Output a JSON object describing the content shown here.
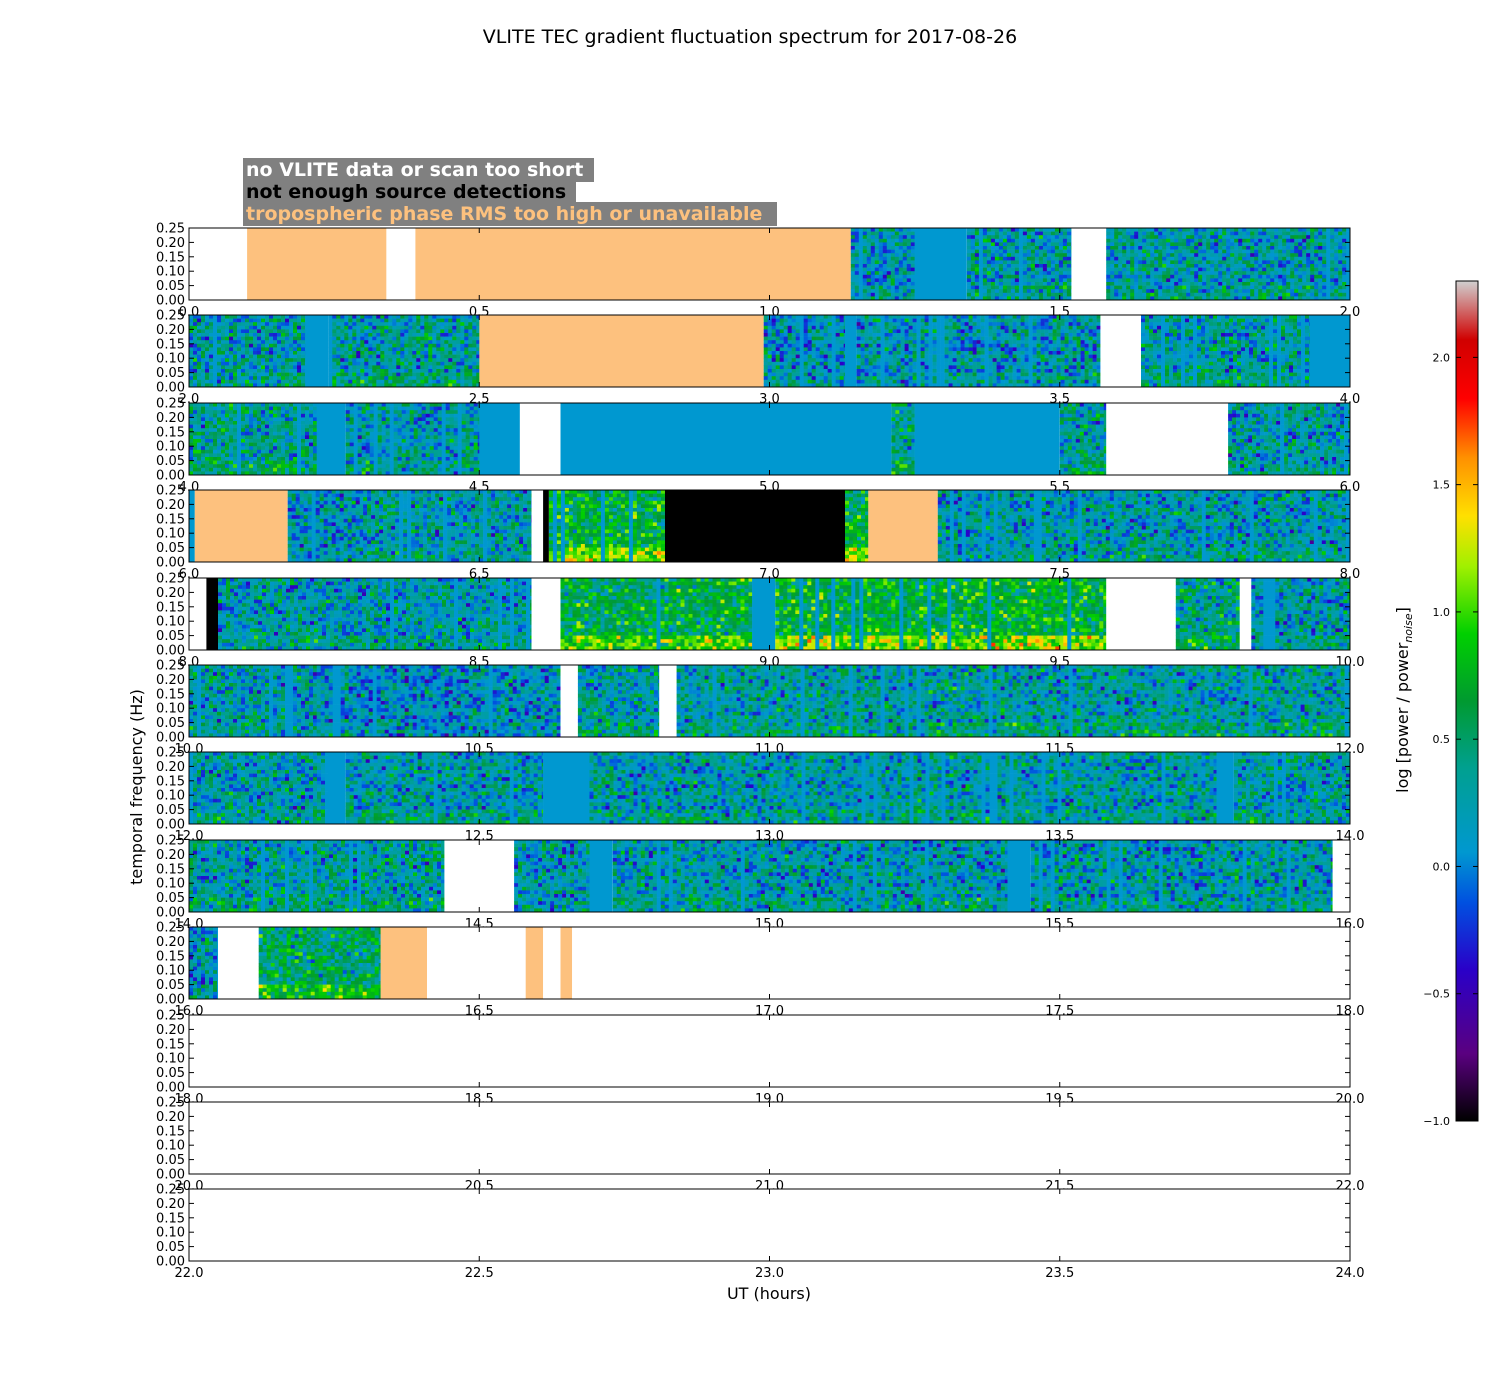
{
  "chart_data": {
    "type": "heatmap",
    "title": "VLITE TEC gradient fluctuation spectrum for 2017-08-26",
    "xlabel": "UT (hours)",
    "ylabel": "temporal frequency (Hz)",
    "ylim": [
      0,
      0.25
    ],
    "yticks": [
      "0.00",
      "0.05",
      "0.10",
      "0.15",
      "0.20",
      "0.25"
    ],
    "colorbar": {
      "label": "log [power / power",
      "label_sub": "noise",
      "label_end": "]",
      "range": [
        -1.0,
        2.3
      ],
      "ticks": [
        "−1.0",
        "−0.5",
        "0.0",
        "0.5",
        "1.0",
        "1.5",
        "2.0"
      ],
      "tick_values": [
        -1.0,
        -0.5,
        0.0,
        0.5,
        1.0,
        1.5,
        2.0
      ]
    },
    "legend": [
      {
        "text": "no VLITE data or scan too short",
        "status": "no_data",
        "color": "#ffffff"
      },
      {
        "text": "not enough source detections",
        "status": "few_detections",
        "color": "#000000"
      },
      {
        "text": "tropospheric phase RMS too high or unavailable",
        "status": "tropo",
        "color": "#fdc17e"
      }
    ],
    "panels": [
      {
        "xlim": [
          0,
          2
        ],
        "xticks": [
          "0.0",
          "0.5",
          "1.0",
          "1.5",
          "2.0"
        ],
        "segments": [
          {
            "start": 0.0,
            "end": 0.1,
            "status": "no_data"
          },
          {
            "start": 0.1,
            "end": 0.34,
            "status": "tropo"
          },
          {
            "start": 0.34,
            "end": 0.39,
            "status": "no_data"
          },
          {
            "start": 0.39,
            "end": 1.14,
            "status": "tropo"
          },
          {
            "start": 1.14,
            "end": 1.25,
            "status": "data",
            "level": 0.1
          },
          {
            "start": 1.25,
            "end": 1.34,
            "status": "quiet"
          },
          {
            "start": 1.34,
            "end": 1.52,
            "status": "data",
            "level": 0.15
          },
          {
            "start": 1.52,
            "end": 1.58,
            "status": "no_data"
          },
          {
            "start": 1.58,
            "end": 2.0,
            "status": "data",
            "level": 0.15
          }
        ]
      },
      {
        "xlim": [
          2,
          4
        ],
        "xticks": [
          "2.0",
          "2.5",
          "3.0",
          "3.5",
          "4.0"
        ],
        "segments": [
          {
            "start": 2.0,
            "end": 2.2,
            "status": "data",
            "level": 0.15
          },
          {
            "start": 2.2,
            "end": 2.24,
            "status": "quiet"
          },
          {
            "start": 2.24,
            "end": 2.5,
            "status": "data",
            "level": 0.2
          },
          {
            "start": 2.5,
            "end": 2.99,
            "status": "tropo"
          },
          {
            "start": 2.99,
            "end": 3.13,
            "status": "data",
            "level": 0.1
          },
          {
            "start": 3.13,
            "end": 3.15,
            "status": "quiet"
          },
          {
            "start": 3.15,
            "end": 3.57,
            "status": "data",
            "level": 0.1
          },
          {
            "start": 3.57,
            "end": 3.64,
            "status": "no_data"
          },
          {
            "start": 3.64,
            "end": 3.93,
            "status": "data",
            "level": 0.2
          },
          {
            "start": 3.93,
            "end": 4.0,
            "status": "quiet"
          }
        ]
      },
      {
        "xlim": [
          4,
          6
        ],
        "xticks": [
          "4.0",
          "4.5",
          "5.0",
          "5.5",
          "6.0"
        ],
        "segments": [
          {
            "start": 4.0,
            "end": 4.22,
            "status": "data",
            "level": 0.25
          },
          {
            "start": 4.22,
            "end": 4.27,
            "status": "quiet"
          },
          {
            "start": 4.27,
            "end": 4.5,
            "status": "data",
            "level": 0.15
          },
          {
            "start": 4.5,
            "end": 4.57,
            "status": "quiet"
          },
          {
            "start": 4.57,
            "end": 4.64,
            "status": "no_data"
          },
          {
            "start": 4.64,
            "end": 5.0,
            "status": "quiet"
          },
          {
            "start": 5.0,
            "end": 5.21,
            "status": "quiet"
          },
          {
            "start": 5.21,
            "end": 5.25,
            "status": "data",
            "level": 0.3
          },
          {
            "start": 5.25,
            "end": 5.5,
            "status": "quiet"
          },
          {
            "start": 5.5,
            "end": 5.58,
            "status": "data",
            "level": 0.25
          },
          {
            "start": 5.58,
            "end": 5.79,
            "status": "no_data"
          },
          {
            "start": 5.79,
            "end": 6.0,
            "status": "data",
            "level": 0.15
          }
        ]
      },
      {
        "xlim": [
          6,
          8
        ],
        "xticks": [
          "6.0",
          "6.5",
          "7.0",
          "7.5",
          "8.0"
        ],
        "segments": [
          {
            "start": 6.0,
            "end": 6.01,
            "status": "quiet"
          },
          {
            "start": 6.01,
            "end": 6.17,
            "status": "tropo"
          },
          {
            "start": 6.17,
            "end": 6.3,
            "status": "data",
            "level": 0.1
          },
          {
            "start": 6.3,
            "end": 6.59,
            "status": "data",
            "level": 0.15
          },
          {
            "start": 6.59,
            "end": 6.61,
            "status": "no_data"
          },
          {
            "start": 6.61,
            "end": 6.62,
            "status": "few_detections"
          },
          {
            "start": 6.62,
            "end": 6.82,
            "status": "data",
            "level": 0.6
          },
          {
            "start": 6.82,
            "end": 7.13,
            "status": "few_detections"
          },
          {
            "start": 7.13,
            "end": 7.17,
            "status": "data",
            "level": 0.6
          },
          {
            "start": 7.17,
            "end": 7.29,
            "status": "tropo"
          },
          {
            "start": 7.29,
            "end": 8.0,
            "status": "data",
            "level": 0.15
          }
        ]
      },
      {
        "xlim": [
          8,
          10
        ],
        "xticks": [
          "8.0",
          "8.5",
          "9.0",
          "9.5",
          "10.0"
        ],
        "segments": [
          {
            "start": 8.0,
            "end": 8.03,
            "status": "no_data"
          },
          {
            "start": 8.03,
            "end": 8.05,
            "status": "few_detections"
          },
          {
            "start": 8.05,
            "end": 8.59,
            "status": "data",
            "level": 0.15
          },
          {
            "start": 8.59,
            "end": 8.64,
            "status": "no_data"
          },
          {
            "start": 8.64,
            "end": 8.97,
            "status": "data",
            "level": 0.5
          },
          {
            "start": 8.97,
            "end": 9.01,
            "status": "quiet"
          },
          {
            "start": 9.01,
            "end": 9.58,
            "status": "data",
            "level": 0.6
          },
          {
            "start": 9.58,
            "end": 9.7,
            "status": "no_data"
          },
          {
            "start": 9.7,
            "end": 9.81,
            "status": "data",
            "level": 0.3
          },
          {
            "start": 9.81,
            "end": 9.83,
            "status": "no_data"
          },
          {
            "start": 9.83,
            "end": 10.0,
            "status": "data",
            "level": 0.15
          }
        ]
      },
      {
        "xlim": [
          10,
          12
        ],
        "xticks": [
          "10.0",
          "10.5",
          "11.0",
          "11.5",
          "12.0"
        ],
        "segments": [
          {
            "start": 10.0,
            "end": 10.22,
            "status": "data",
            "level": 0.15
          },
          {
            "start": 10.22,
            "end": 10.64,
            "status": "data",
            "level": 0.05
          },
          {
            "start": 10.64,
            "end": 10.67,
            "status": "no_data"
          },
          {
            "start": 10.67,
            "end": 10.81,
            "status": "data",
            "level": 0.2
          },
          {
            "start": 10.81,
            "end": 10.84,
            "status": "no_data"
          },
          {
            "start": 10.84,
            "end": 12.0,
            "status": "data",
            "level": 0.2
          }
        ]
      },
      {
        "xlim": [
          12,
          14
        ],
        "xticks": [
          "12.0",
          "12.5",
          "13.0",
          "13.5",
          "14.0"
        ],
        "segments": [
          {
            "start": 12.0,
            "end": 12.24,
            "status": "data",
            "level": 0.15
          },
          {
            "start": 12.24,
            "end": 12.27,
            "status": "quiet"
          },
          {
            "start": 12.27,
            "end": 12.61,
            "status": "data",
            "level": 0.15
          },
          {
            "start": 12.61,
            "end": 12.69,
            "status": "quiet"
          },
          {
            "start": 12.69,
            "end": 13.77,
            "status": "data",
            "level": 0.15
          },
          {
            "start": 13.77,
            "end": 13.8,
            "status": "quiet"
          },
          {
            "start": 13.8,
            "end": 14.0,
            "status": "data",
            "level": 0.15
          }
        ]
      },
      {
        "xlim": [
          14,
          16
        ],
        "xticks": [
          "14.0",
          "14.5",
          "15.0",
          "15.5",
          "16.0"
        ],
        "segments": [
          {
            "start": 14.0,
            "end": 14.44,
            "status": "data",
            "level": 0.2
          },
          {
            "start": 14.44,
            "end": 14.56,
            "status": "no_data"
          },
          {
            "start": 14.56,
            "end": 14.69,
            "status": "data",
            "level": 0.1
          },
          {
            "start": 14.69,
            "end": 14.73,
            "status": "quiet"
          },
          {
            "start": 14.73,
            "end": 15.41,
            "status": "data",
            "level": 0.15
          },
          {
            "start": 15.41,
            "end": 15.45,
            "status": "quiet"
          },
          {
            "start": 15.45,
            "end": 15.97,
            "status": "data",
            "level": 0.15
          },
          {
            "start": 15.97,
            "end": 16.0,
            "status": "no_data"
          }
        ]
      },
      {
        "xlim": [
          16,
          18
        ],
        "xticks": [
          "16.0",
          "16.5",
          "17.0",
          "17.5",
          "18.0"
        ],
        "segments": [
          {
            "start": 16.0,
            "end": 16.05,
            "status": "data",
            "level": 0.1
          },
          {
            "start": 16.05,
            "end": 16.12,
            "status": "no_data"
          },
          {
            "start": 16.12,
            "end": 16.33,
            "status": "data",
            "level": 0.4
          },
          {
            "start": 16.33,
            "end": 16.41,
            "status": "tropo"
          },
          {
            "start": 16.41,
            "end": 16.58,
            "status": "no_data"
          },
          {
            "start": 16.58,
            "end": 16.61,
            "status": "tropo"
          },
          {
            "start": 16.61,
            "end": 16.64,
            "status": "no_data"
          },
          {
            "start": 16.64,
            "end": 16.66,
            "status": "tropo"
          },
          {
            "start": 16.66,
            "end": 18.0,
            "status": "no_data"
          }
        ]
      },
      {
        "xlim": [
          18,
          20
        ],
        "xticks": [
          "18.0",
          "18.5",
          "19.0",
          "19.5",
          "20.0"
        ],
        "segments": []
      },
      {
        "xlim": [
          20,
          22
        ],
        "xticks": [
          "20.0",
          "20.5",
          "21.0",
          "21.5",
          "22.0"
        ],
        "segments": []
      },
      {
        "xlim": [
          22,
          24
        ],
        "xticks": [
          "22.0",
          "22.5",
          "23.0",
          "23.5",
          "24.0"
        ],
        "segments": []
      }
    ]
  }
}
